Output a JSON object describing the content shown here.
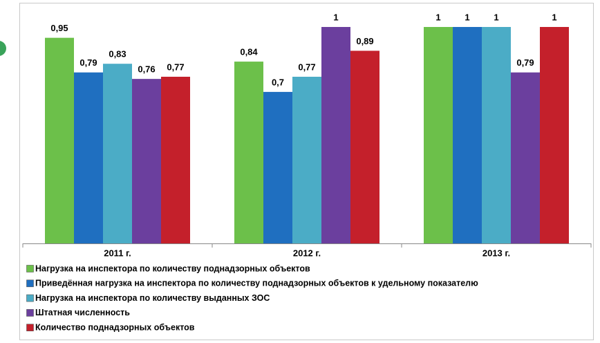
{
  "chart_data": {
    "type": "bar",
    "categories": [
      "2011 г.",
      "2012 г.",
      "2013 г."
    ],
    "series": [
      {
        "name": "Нагрузка на инспектора по количеству поднадзорных объектов",
        "color": "#6cc04a",
        "values": [
          0.95,
          0.84,
          1
        ],
        "value_labels": [
          "0,95",
          "0,84",
          "1"
        ]
      },
      {
        "name": "Приведённая нагрузка на инспектора по количеству поднадзорных объектов к удельному показателю",
        "color": "#1f6fc0",
        "values": [
          0.79,
          0.7,
          1
        ],
        "value_labels": [
          "0,79",
          "0,7",
          "1"
        ]
      },
      {
        "name": "Нагрузка на инспектора по количеству выданных ЗОС",
        "color": "#4bacc6",
        "values": [
          0.83,
          0.77,
          1
        ],
        "value_labels": [
          "0,83",
          "0,77",
          "1"
        ]
      },
      {
        "name": "Штатная численность",
        "color": "#6b3f9e",
        "values": [
          0.76,
          1,
          0.79
        ],
        "value_labels": [
          "0,76",
          "1",
          "0,79"
        ]
      },
      {
        "name": "Количество поднадзорных объектов",
        "color": "#c4202b",
        "values": [
          0.77,
          0.89,
          1
        ],
        "value_labels": [
          "0,77",
          "0,89",
          "1"
        ]
      }
    ]
  }
}
